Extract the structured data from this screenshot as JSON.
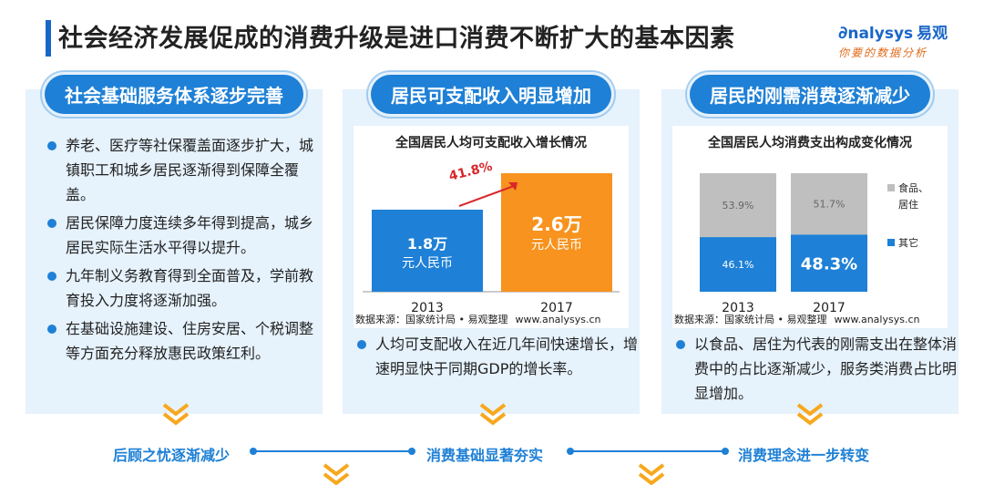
{
  "header": {
    "title": "社会经济发展促成的消费升级是进口消费不断扩大的基本因素",
    "logo_text": "nalysys",
    "logo_cn": "易观",
    "logo_slogan": "你要的数据分析"
  },
  "panels": [
    {
      "heading": "社会基础服务体系逐步完善",
      "bullets": [
        "养老、医疗等社保覆盖面逐步扩大，城镇职工和城乡居民逐渐得到保障全覆盖。",
        "居民保障力度连续多年得到提高，城乡居民实际生活水平得以提升。",
        "九年制义务教育得到全面普及，学前教育投入力度将逐渐加强。",
        "在基础设施建设、住房安居、个税调整等方面充分释放惠民政策红利。"
      ]
    },
    {
      "heading": "居民可支配收入明显增加",
      "source": "数据来源：国家统计局 • 易观整理",
      "url": "www.analysys.cn",
      "text": "人均可支配收入在近几年间快速增长，增速明显快于同期GDP的增长率。"
    },
    {
      "heading": "居民的刚需消费逐渐减少",
      "source": "数据来源：国家统计局 • 易观整理",
      "url": "www.analysys.cn",
      "text": "以食品、居住为代表的刚需支出在整体消费中的占比逐渐减少，服务类消费占比明显增加。"
    }
  ],
  "flow": {
    "labels": [
      "后顾之忧逐渐减少",
      "消费基础显著夯实",
      "消费理念进一步转变"
    ]
  },
  "chart_data": [
    {
      "type": "bar",
      "title": "全国居民人均可支配收入增长情况",
      "categories": [
        "2013",
        "2017"
      ],
      "values": [
        1.8,
        2.6
      ],
      "value_labels": [
        "1.8万",
        "2.6万"
      ],
      "unit_label": "元人民币",
      "growth_label": "41.8%",
      "colors": [
        "#1e80d6",
        "#f7931e"
      ],
      "ylim": [
        0,
        3.0
      ]
    },
    {
      "type": "bar",
      "title": "全国居民人均消费支出构成变化情况",
      "categories": [
        "2013",
        "2017"
      ],
      "series": [
        {
          "name": "其它",
          "values": [
            46.1,
            48.3
          ],
          "labels": [
            "46.1%",
            "48.3%"
          ],
          "color": "#1e80d6"
        },
        {
          "name": "食品、居住",
          "values": [
            53.9,
            51.7
          ],
          "labels": [
            "53.9%",
            "51.7%"
          ],
          "color": "#bfbfbf"
        }
      ],
      "ylim": [
        0,
        100
      ]
    }
  ]
}
